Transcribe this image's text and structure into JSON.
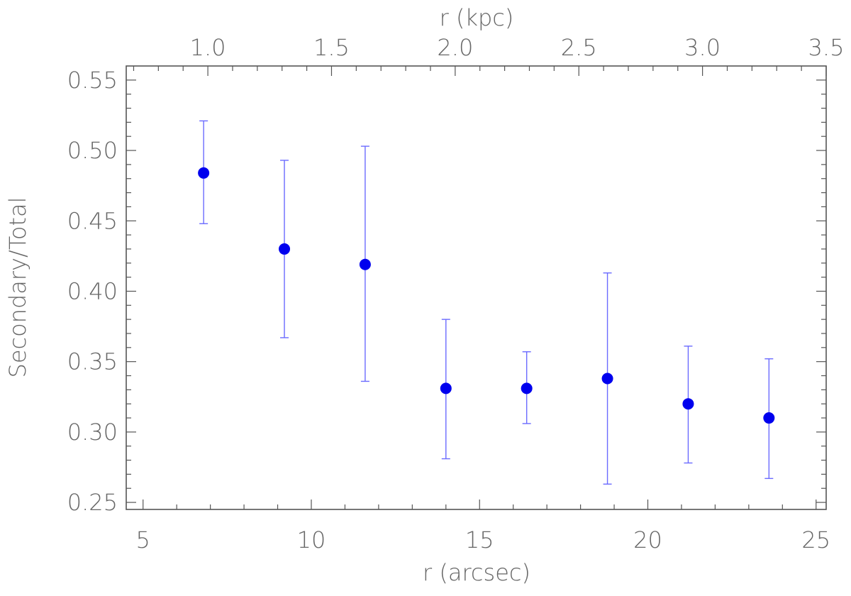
{
  "chart_data": {
    "type": "scatter",
    "xlabel": "r (arcsec)",
    "ylabel": "Secondary/Total",
    "top_xlabel": "r (kpc)",
    "xlim": [
      4.5,
      25.3
    ],
    "ylim": [
      0.245,
      0.56
    ],
    "top_xlim": [
      0.67,
      3.5
    ],
    "x_ticks": [
      5,
      10,
      15,
      20,
      25
    ],
    "x_tick_labels": [
      "5",
      "10",
      "15",
      "20",
      "25"
    ],
    "y_ticks": [
      0.25,
      0.3,
      0.35,
      0.4,
      0.45,
      0.5,
      0.55
    ],
    "y_tick_labels": [
      "0.25",
      "0.30",
      "0.35",
      "0.40",
      "0.45",
      "0.50",
      "0.55"
    ],
    "top_x_ticks": [
      1.0,
      1.5,
      2.0,
      2.5,
      3.0,
      3.5
    ],
    "top_x_tick_labels": [
      "1.0",
      "1.5",
      "2.0",
      "2.5",
      "3.0",
      "3.5"
    ],
    "grid": false,
    "colors": {
      "points": "#0000ee",
      "errorbars": "#6b6bff",
      "axes": "#555555",
      "text": "#666666"
    },
    "points": [
      {
        "x": 6.8,
        "y": 0.484,
        "ylow": 0.448,
        "yhigh": 0.521
      },
      {
        "x": 9.2,
        "y": 0.43,
        "ylow": 0.367,
        "yhigh": 0.493
      },
      {
        "x": 11.6,
        "y": 0.419,
        "ylow": 0.336,
        "yhigh": 0.503
      },
      {
        "x": 14.0,
        "y": 0.331,
        "ylow": 0.281,
        "yhigh": 0.38
      },
      {
        "x": 16.4,
        "y": 0.331,
        "ylow": 0.306,
        "yhigh": 0.357
      },
      {
        "x": 18.8,
        "y": 0.338,
        "ylow": 0.263,
        "yhigh": 0.413
      },
      {
        "x": 21.2,
        "y": 0.32,
        "ylow": 0.278,
        "yhigh": 0.361
      },
      {
        "x": 23.6,
        "y": 0.31,
        "ylow": 0.267,
        "yhigh": 0.352
      }
    ]
  }
}
